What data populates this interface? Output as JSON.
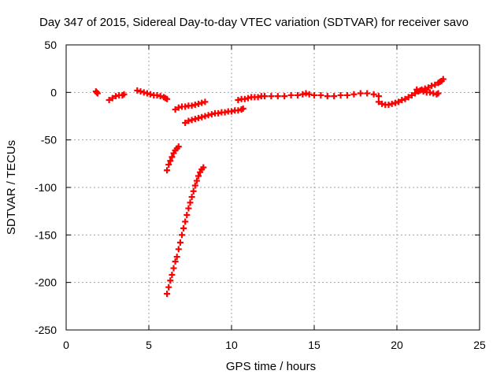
{
  "chart_data": {
    "type": "scatter",
    "title": "Day 347 of 2015, Sidereal Day-to-day VTEC variation (SDTVAR) for receiver savo",
    "xlabel": "GPS time / hours",
    "ylabel": "SDTVAR / TECUs",
    "xlim": [
      0,
      25
    ],
    "ylim": [
      -250,
      50
    ],
    "xticks": [
      0,
      5,
      10,
      15,
      20,
      25
    ],
    "yticks": [
      50,
      0,
      -50,
      -100,
      -150,
      -200,
      -250
    ],
    "grid": true,
    "marker": "plus",
    "color": "#ff0000",
    "series": [
      {
        "points": [
          [
            1.8,
            1
          ],
          [
            1.85,
            0
          ],
          [
            1.9,
            -1
          ],
          [
            2.6,
            -8
          ],
          [
            2.8,
            -6
          ],
          [
            3.0,
            -4
          ],
          [
            3.2,
            -3
          ],
          [
            3.4,
            -3
          ],
          [
            3.5,
            -2
          ],
          [
            4.3,
            2
          ],
          [
            4.5,
            1
          ],
          [
            4.7,
            0
          ],
          [
            4.9,
            -1
          ],
          [
            5.1,
            -2
          ],
          [
            5.3,
            -3
          ],
          [
            5.5,
            -3
          ],
          [
            5.7,
            -4
          ],
          [
            5.9,
            -5
          ],
          [
            6.0,
            -6
          ],
          [
            6.1,
            -7
          ],
          [
            6.1,
            -82
          ],
          [
            6.2,
            -76
          ],
          [
            6.3,
            -72
          ],
          [
            6.4,
            -68
          ],
          [
            6.5,
            -64
          ],
          [
            6.6,
            -61
          ],
          [
            6.7,
            -59
          ],
          [
            6.8,
            -57
          ],
          [
            6.1,
            -212
          ],
          [
            6.2,
            -205
          ],
          [
            6.3,
            -198
          ],
          [
            6.4,
            -192
          ],
          [
            6.5,
            -185
          ],
          [
            6.6,
            -178
          ],
          [
            6.7,
            -173
          ],
          [
            6.8,
            -165
          ],
          [
            6.9,
            -158
          ],
          [
            7.0,
            -150
          ],
          [
            7.1,
            -143
          ],
          [
            7.2,
            -136
          ],
          [
            7.3,
            -129
          ],
          [
            7.4,
            -122
          ],
          [
            7.5,
            -116
          ],
          [
            7.6,
            -110
          ],
          [
            7.7,
            -104
          ],
          [
            7.8,
            -98
          ],
          [
            7.9,
            -93
          ],
          [
            8.0,
            -88
          ],
          [
            8.1,
            -84
          ],
          [
            8.2,
            -81
          ],
          [
            8.3,
            -79
          ],
          [
            6.6,
            -18
          ],
          [
            6.8,
            -16
          ],
          [
            7.0,
            -15
          ],
          [
            7.2,
            -15
          ],
          [
            7.4,
            -14
          ],
          [
            7.6,
            -14
          ],
          [
            7.8,
            -13
          ],
          [
            8.0,
            -12
          ],
          [
            8.2,
            -11
          ],
          [
            8.4,
            -10
          ],
          [
            7.2,
            -32
          ],
          [
            7.4,
            -30
          ],
          [
            7.6,
            -29
          ],
          [
            7.8,
            -28
          ],
          [
            8.0,
            -27
          ],
          [
            8.2,
            -26
          ],
          [
            8.4,
            -25
          ],
          [
            8.6,
            -24
          ],
          [
            8.8,
            -23
          ],
          [
            9.0,
            -22
          ],
          [
            9.2,
            -22
          ],
          [
            9.4,
            -21
          ],
          [
            9.6,
            -21
          ],
          [
            9.8,
            -20
          ],
          [
            10.0,
            -20
          ],
          [
            10.2,
            -19
          ],
          [
            10.4,
            -19
          ],
          [
            10.6,
            -18
          ],
          [
            10.7,
            -17
          ],
          [
            10.4,
            -8
          ],
          [
            10.6,
            -7
          ],
          [
            10.8,
            -7
          ],
          [
            11.0,
            -6
          ],
          [
            11.2,
            -5
          ],
          [
            11.4,
            -5
          ],
          [
            11.6,
            -5
          ],
          [
            11.8,
            -4
          ],
          [
            12.0,
            -4
          ],
          [
            12.4,
            -4
          ],
          [
            12.8,
            -4
          ],
          [
            13.2,
            -4
          ],
          [
            13.6,
            -3
          ],
          [
            14.0,
            -3
          ],
          [
            14.3,
            -2
          ],
          [
            14.5,
            -1
          ],
          [
            14.7,
            -2
          ],
          [
            15.0,
            -3
          ],
          [
            15.4,
            -3
          ],
          [
            15.8,
            -4
          ],
          [
            16.2,
            -4
          ],
          [
            16.6,
            -3
          ],
          [
            17.0,
            -3
          ],
          [
            17.4,
            -2
          ],
          [
            17.8,
            -1
          ],
          [
            18.2,
            -1
          ],
          [
            18.6,
            -2
          ],
          [
            18.9,
            -4
          ],
          [
            18.9,
            -10
          ],
          [
            19.1,
            -12
          ],
          [
            19.3,
            -13
          ],
          [
            19.5,
            -13
          ],
          [
            19.7,
            -12
          ],
          [
            19.9,
            -11
          ],
          [
            20.1,
            -10
          ],
          [
            20.3,
            -8
          ],
          [
            20.5,
            -7
          ],
          [
            20.7,
            -5
          ],
          [
            20.9,
            -3
          ],
          [
            21.1,
            -1
          ],
          [
            21.3,
            1
          ],
          [
            21.5,
            3
          ],
          [
            21.7,
            4
          ],
          [
            21.9,
            5
          ],
          [
            22.1,
            7
          ],
          [
            21.2,
            3
          ],
          [
            21.4,
            2
          ],
          [
            21.6,
            1
          ],
          [
            21.8,
            0
          ],
          [
            22.0,
            0
          ],
          [
            22.2,
            -1
          ],
          [
            22.4,
            -2
          ],
          [
            22.5,
            -1
          ],
          [
            22.3,
            8
          ],
          [
            22.5,
            10
          ],
          [
            22.6,
            11
          ],
          [
            22.7,
            12
          ],
          [
            22.8,
            14
          ]
        ]
      }
    ]
  }
}
